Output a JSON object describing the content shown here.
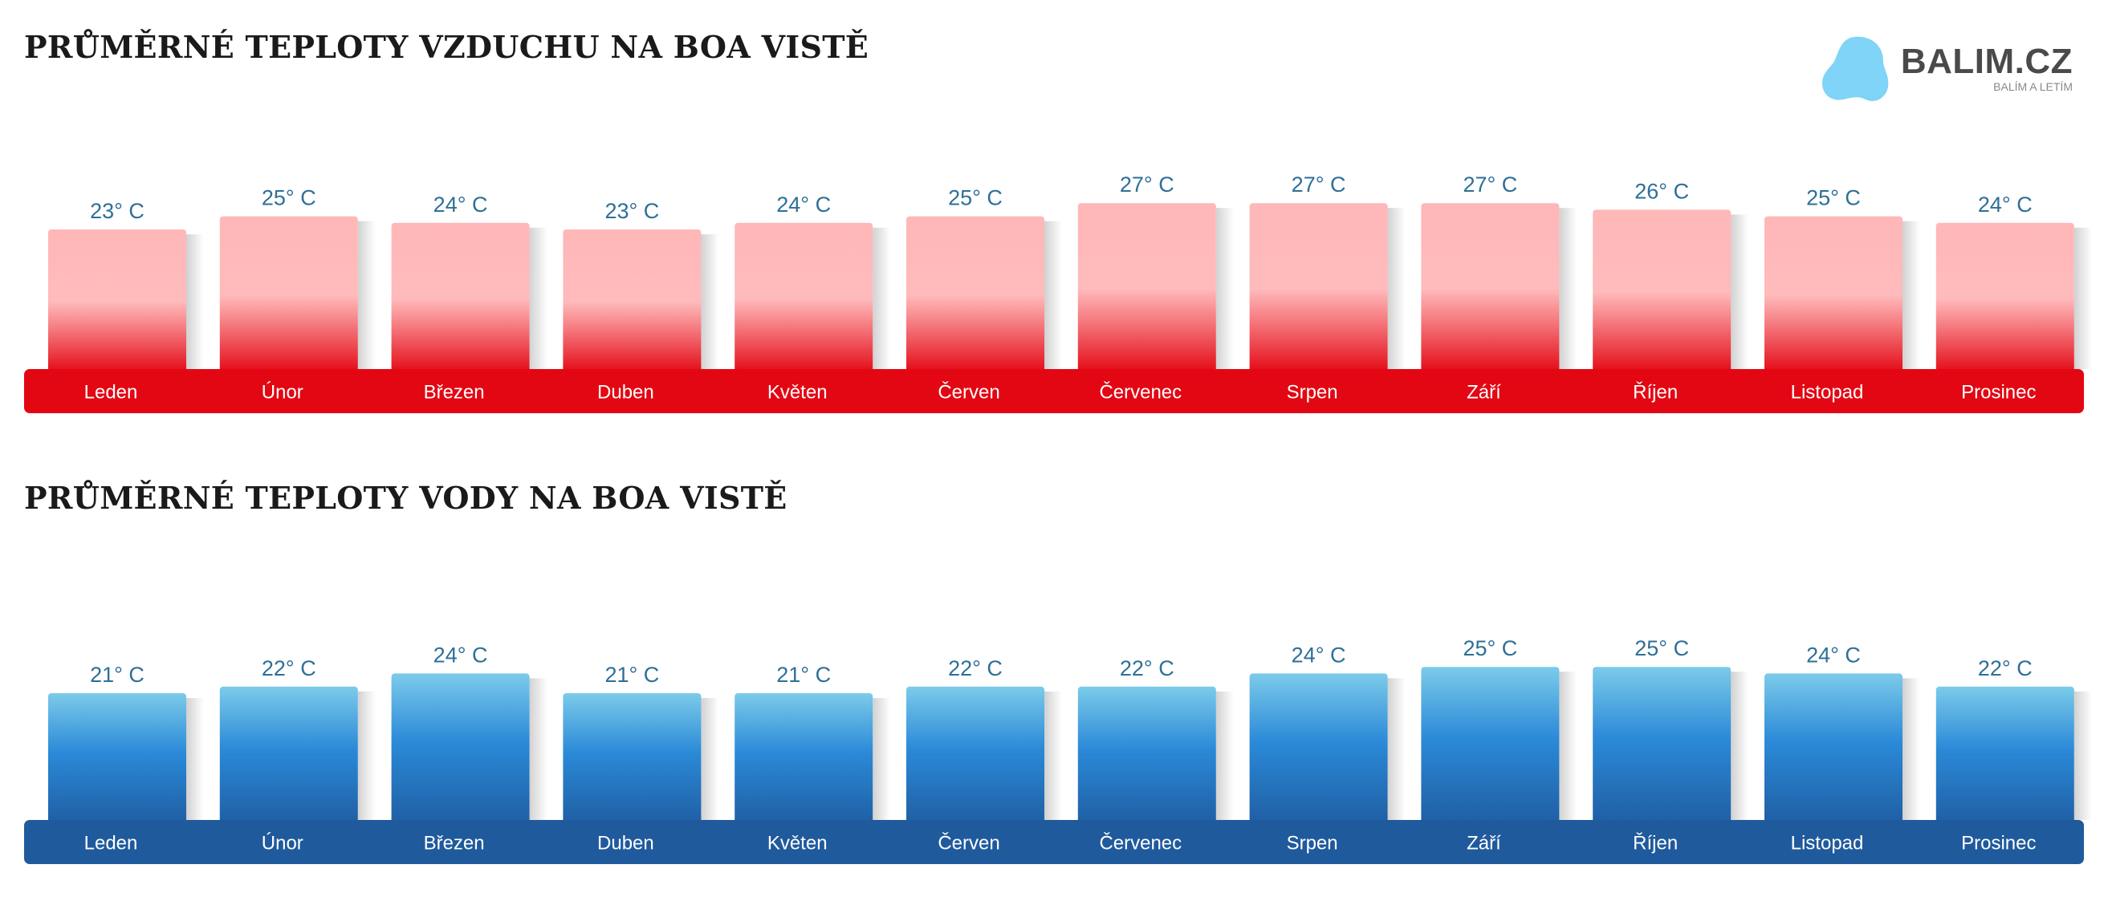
{
  "logo": {
    "name": "BALIM.CZ",
    "tagline": "BALÍM A LETÍM",
    "color": "#7fd4f7"
  },
  "chart_data": [
    {
      "type": "bar",
      "title": "PRŮMĚRNÉ TEPLOTY VZDUCHU NA BOA VISTĚ",
      "categories": [
        "Leden",
        "Únor",
        "Březen",
        "Duben",
        "Květen",
        "Červen",
        "Červenec",
        "Srpen",
        "Září",
        "Říjen",
        "Listopad",
        "Prosinec"
      ],
      "values": [
        23,
        25,
        24,
        23,
        24,
        25,
        27,
        27,
        27,
        26,
        25,
        24
      ],
      "value_labels": [
        "23° C",
        "25° C",
        "24° C",
        "23° C",
        "24° C",
        "25° C",
        "27° C",
        "27° C",
        "27° C",
        "26° C",
        "25° C",
        "24° C"
      ],
      "unit": "° C",
      "colors": {
        "bar_top": "#ffb7b8",
        "bar_bottom": "#e30713",
        "axis_band": "#e30713",
        "value_label": "#2e6f97"
      }
    },
    {
      "type": "bar",
      "title": "PRŮMĚRNÉ TEPLOTY VODY NA BOA VISTĚ",
      "categories": [
        "Leden",
        "Únor",
        "Březen",
        "Duben",
        "Květen",
        "Červen",
        "Červenec",
        "Srpen",
        "Září",
        "Říjen",
        "Listopad",
        "Prosinec"
      ],
      "values": [
        21,
        22,
        24,
        21,
        21,
        22,
        22,
        24,
        25,
        25,
        24,
        22
      ],
      "value_labels": [
        "21° C",
        "22° C",
        "24° C",
        "21° C",
        "21° C",
        "22° C",
        "22° C",
        "24° C",
        "25° C",
        "25° C",
        "24° C",
        "22° C"
      ],
      "unit": "° C",
      "colors": {
        "bar_top": "#7ccbea",
        "bar_mid": "#2b8ad8",
        "bar_bottom": "#1f5ea3",
        "axis_band": "#1f5a9c",
        "value_label": "#2e6f97"
      }
    }
  ]
}
